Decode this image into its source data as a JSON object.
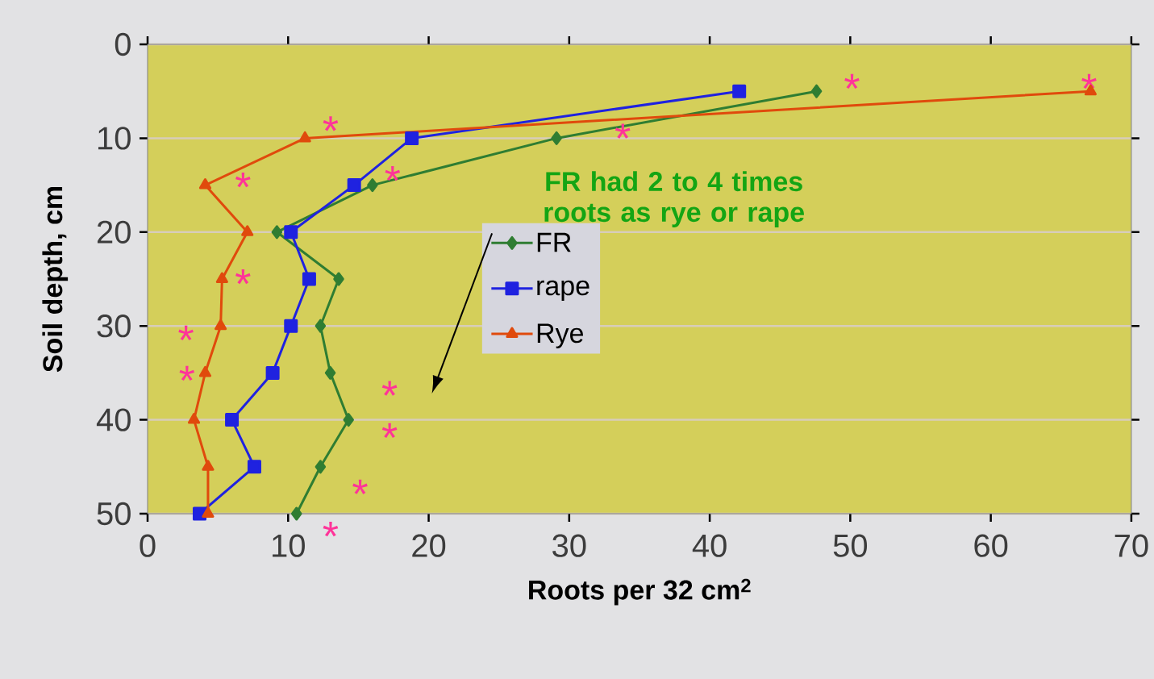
{
  "chart_data": {
    "type": "line",
    "orientation": "horizontal",
    "xlabel": "Roots per 32 cm$^{2}$",
    "ylabel": "Soil depth, cm",
    "x": [
      5,
      10,
      15,
      20,
      25,
      30,
      35,
      40,
      45,
      50
    ],
    "series": [
      {
        "name": "FR",
        "color": "#2f7d32",
        "marker": "diamond",
        "values": [
          47.6,
          29.1,
          16.0,
          9.2,
          13.6,
          12.3,
          13.0,
          14.3,
          12.3,
          10.6
        ]
      },
      {
        "name": "rape",
        "color": "#1f22e0",
        "marker": "square",
        "values": [
          42.1,
          18.8,
          14.7,
          10.2,
          11.5,
          10.2,
          8.9,
          6.0,
          7.6,
          3.7
        ]
      },
      {
        "name": "Rye",
        "color": "#e04a0c",
        "marker": "triangle",
        "values": [
          67.1,
          11.2,
          4.1,
          7.1,
          5.3,
          5.2,
          4.1,
          3.3,
          4.3,
          4.3
        ]
      }
    ],
    "xlim": [
      0,
      70
    ],
    "xticks": [
      0,
      10,
      20,
      30,
      40,
      50,
      60,
      70
    ],
    "ylim": [
      50,
      0
    ],
    "yticks": [
      0,
      10,
      20,
      30,
      40,
      50
    ],
    "grid": "y",
    "legend": "center",
    "annotations": [
      "FR had 2 to 4 times roots as rye or rape",
      "*",
      "*",
      "*",
      "*",
      "*",
      "*",
      "*",
      "*",
      "*",
      "*",
      "*",
      "*",
      "*"
    ]
  }
}
